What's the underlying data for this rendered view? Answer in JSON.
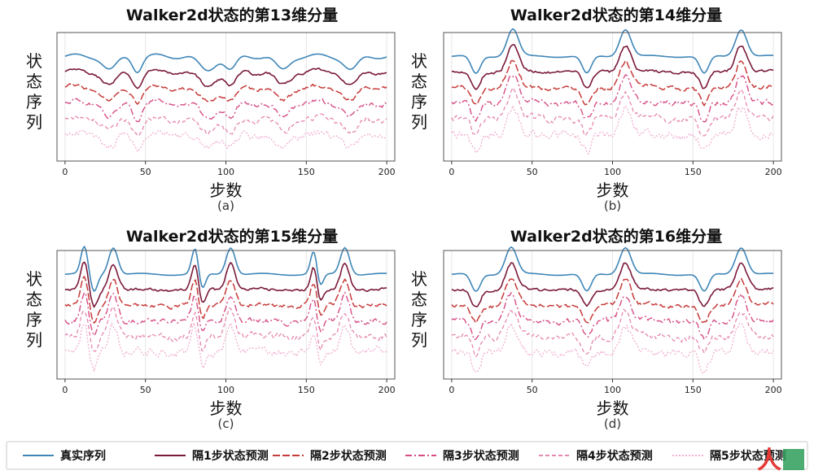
{
  "colors": {
    "real": "#3f86b8",
    "step1": "#7a1a3a",
    "step2": "#c73a3a",
    "step3": "#d64d86",
    "step4": "#e588b0",
    "step5": "#f0aed0",
    "watermark_red": "#e53935",
    "watermark_green": "#2e9e58"
  },
  "legend": {
    "items": [
      {
        "label": "真实序列",
        "color": "#3f86b8",
        "dash": "solid"
      },
      {
        "label": "隔1步状态预测",
        "color": "#7a1a3a",
        "dash": "solid"
      },
      {
        "label": "隔2步状态预测",
        "color": "#c73a3a",
        "dash": "long-dash"
      },
      {
        "label": "隔3步状态预测",
        "color": "#d64d86",
        "dash": "dash-dot"
      },
      {
        "label": "隔4步状态预测",
        "color": "#e588b0",
        "dash": "short-dash"
      },
      {
        "label": "隔5步状态预测",
        "color": "#f0aed0",
        "dash": "dotted"
      }
    ]
  },
  "watermark": {
    "text": "人人都是产品经理",
    "shown": "人"
  },
  "chart_data": [
    {
      "type": "line",
      "title": "Walker2d状态的第13维分量",
      "xlabel": "步数",
      "ylabel": "状态序列",
      "caption": "(a)",
      "xlim": [
        -5,
        205
      ],
      "xticks": [
        0,
        50,
        100,
        150,
        200
      ],
      "yticks_shown": false,
      "grid": "vertical",
      "pattern": "plateau",
      "events": [
        [
          28,
          6
        ],
        [
          45,
          4
        ],
        [
          88,
          7
        ],
        [
          103,
          5
        ],
        [
          135,
          6
        ],
        [
          178,
          6
        ]
      ],
      "series_offsets": [
        0,
        1,
        2,
        3,
        4,
        5
      ]
    },
    {
      "type": "line",
      "title": "Walker2d状态的第14维分量",
      "xlabel": "步数",
      "ylabel": "状态序列",
      "caption": "(b)",
      "xlim": [
        -5,
        205
      ],
      "xticks": [
        0,
        50,
        100,
        150,
        200
      ],
      "yticks_shown": false,
      "grid": "vertical",
      "pattern": "spike",
      "events": [
        [
          38,
          5
        ],
        [
          108,
          5
        ],
        [
          180,
          5
        ]
      ],
      "dips": [
        [
          15,
          4
        ],
        [
          84,
          4
        ],
        [
          157,
          4
        ]
      ],
      "series_offsets": [
        0,
        1,
        2,
        3,
        4,
        5
      ]
    },
    {
      "type": "line",
      "title": "Walker2d状态的第15维分量",
      "xlabel": "步数",
      "ylabel": "状态序列",
      "caption": "(c)",
      "xlim": [
        -5,
        205
      ],
      "xticks": [
        0,
        50,
        100,
        150,
        200
      ],
      "yticks_shown": false,
      "grid": "vertical",
      "pattern": "double-spike",
      "events": [
        [
          12,
          3
        ],
        [
          30,
          4
        ],
        [
          81,
          3
        ],
        [
          103,
          4
        ],
        [
          155,
          3
        ],
        [
          174,
          4
        ]
      ],
      "dips": [
        [
          18,
          3
        ],
        [
          85,
          3
        ],
        [
          158,
          3
        ]
      ],
      "series_offsets": [
        0,
        1,
        2,
        3,
        4,
        5
      ]
    },
    {
      "type": "line",
      "title": "Walker2d状态的第16维分量",
      "xlabel": "步数",
      "ylabel": "状态序列",
      "caption": "(d)",
      "xlim": [
        -5,
        205
      ],
      "xticks": [
        0,
        50,
        100,
        150,
        200
      ],
      "yticks_shown": false,
      "grid": "vertical",
      "pattern": "spike",
      "events": [
        [
          37,
          5
        ],
        [
          108,
          5
        ],
        [
          180,
          5
        ]
      ],
      "dips": [
        [
          15,
          4
        ],
        [
          84,
          4
        ],
        [
          157,
          4
        ]
      ],
      "series_offsets": [
        0,
        1,
        2,
        3,
        4,
        5
      ]
    }
  ]
}
